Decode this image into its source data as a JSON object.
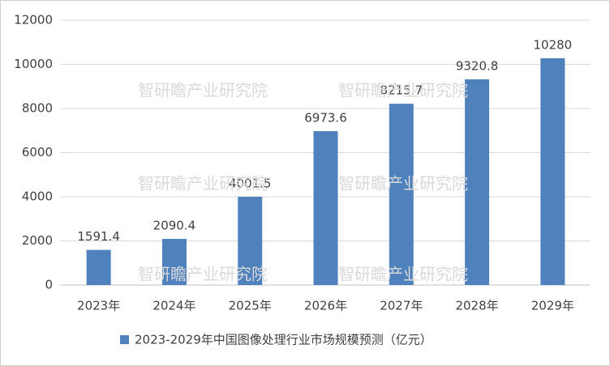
{
  "chart_data": {
    "type": "bar",
    "categories": [
      "2023年",
      "2024年",
      "2025年",
      "2026年",
      "2027年",
      "2028年",
      "2029年"
    ],
    "series": [
      {
        "name": "2023-2029年中国图像处理行业市场规模预测（亿元）",
        "color": "#4f81bd",
        "values": [
          1591.4,
          2090.4,
          4001.5,
          6973.6,
          8215.7,
          9320.8,
          10280
        ]
      }
    ],
    "ylim": [
      0,
      12000
    ],
    "yticks": [
      0,
      2000,
      4000,
      6000,
      8000,
      10000,
      12000
    ],
    "grid": true,
    "legend": "bottom",
    "watermark": "智研瞻产业研究院"
  }
}
